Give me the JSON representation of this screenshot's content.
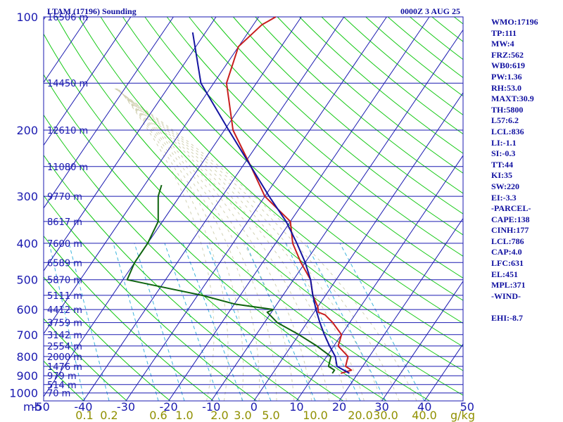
{
  "chart_data": {
    "type": "line",
    "subtype": "skew-T log-P sounding",
    "title": "LTAM (17196) Sounding",
    "datetime": "0000Z  3 AUG 25",
    "pressure_ticks": [
      100,
      200,
      300,
      400,
      500,
      600,
      700,
      800,
      900,
      1000
    ],
    "pressure_unit": "mb",
    "temperature_ticks": [
      -50,
      -40,
      -30,
      -20,
      -10,
      0,
      10,
      20,
      30,
      40,
      50
    ],
    "mixing_ratio_ticks": [
      "0.1",
      "0.2",
      "0.6",
      "1.0",
      "2.0",
      "3.0",
      "5.0",
      "10.0",
      "20.0",
      "30.0",
      "40.0"
    ],
    "mixing_ratio_unit": "g/kg",
    "height_labels": [
      {
        "p": 100,
        "text": "16506 m"
      },
      {
        "p": 150,
        "text": "14450 m"
      },
      {
        "p": 200,
        "text": "12610 m"
      },
      {
        "p": 250,
        "text": "11080 m"
      },
      {
        "p": 300,
        "text": "9770 m"
      },
      {
        "p": 350,
        "text": "8617 m"
      },
      {
        "p": 400,
        "text": "7600 m"
      },
      {
        "p": 450,
        "text": "6589 m"
      },
      {
        "p": 500,
        "text": "5870 m"
      },
      {
        "p": 550,
        "text": "5111 m"
      },
      {
        "p": 600,
        "text": "4412 m"
      },
      {
        "p": 650,
        "text": "3759 m"
      },
      {
        "p": 700,
        "text": "3142 m"
      },
      {
        "p": 750,
        "text": "2554 m"
      },
      {
        "p": 800,
        "text": "2000 m"
      },
      {
        "p": 850,
        "text": "1476 m"
      },
      {
        "p": 900,
        "text": "979 m"
      },
      {
        "p": 950,
        "text": "514 m"
      },
      {
        "p": 1000,
        "text": "70 m"
      }
    ],
    "series": [
      {
        "name": "Temperature",
        "color": "#c81e1e",
        "points": [
          [
            887,
            16
          ],
          [
            870,
            18
          ],
          [
            850,
            16
          ],
          [
            800,
            15
          ],
          [
            750,
            11
          ],
          [
            700,
            10
          ],
          [
            650,
            6
          ],
          [
            620,
            3
          ],
          [
            610,
            1
          ],
          [
            590,
            0
          ],
          [
            550,
            -3
          ],
          [
            500,
            -6
          ],
          [
            450,
            -11
          ],
          [
            400,
            -16
          ],
          [
            350,
            -20
          ],
          [
            300,
            -30
          ],
          [
            250,
            -38
          ],
          [
            200,
            -48
          ],
          [
            150,
            -57
          ],
          [
            120,
            -60
          ],
          [
            105,
            -58
          ],
          [
            100,
            -56
          ]
        ]
      },
      {
        "name": "Dewpoint",
        "color": "#0f640f",
        "points": [
          [
            887,
            14
          ],
          [
            870,
            14
          ],
          [
            850,
            12
          ],
          [
            800,
            11
          ],
          [
            750,
            6
          ],
          [
            700,
            0
          ],
          [
            650,
            -7
          ],
          [
            610,
            -11
          ],
          [
            600,
            -10
          ],
          [
            580,
            -20
          ],
          [
            550,
            -29
          ],
          [
            500,
            -49
          ],
          [
            450,
            -50
          ],
          [
            400,
            -50
          ],
          [
            350,
            -51
          ],
          [
            300,
            -55
          ],
          [
            280,
            -56
          ]
        ]
      },
      {
        "name": "Parcel",
        "color": "#1414a0",
        "points": [
          [
            887,
            18
          ],
          [
            850,
            14
          ],
          [
            800,
            12
          ],
          [
            750,
            9
          ],
          [
            700,
            6
          ],
          [
            650,
            3
          ],
          [
            600,
            0
          ],
          [
            550,
            -3
          ],
          [
            500,
            -6
          ],
          [
            450,
            -10
          ],
          [
            400,
            -15
          ],
          [
            350,
            -21
          ],
          [
            300,
            -29
          ],
          [
            250,
            -38
          ],
          [
            200,
            -49
          ],
          [
            150,
            -63
          ],
          [
            110,
            -73
          ]
        ]
      }
    ],
    "indices": [
      "WMO:17196",
      "TP:111",
      "MW:4",
      "FRZ:562",
      "WB0:619",
      "PW:1.36",
      "RH:53.0",
      "MAXT:30.9",
      "TH:5800",
      "L57:6.2",
      "LCL:836",
      "LI:-1.1",
      "SI:-0.3",
      "TT:44",
      "KI:35",
      "SW:220",
      "EI:-3.3",
      "-PARCEL-",
      "CAPE:138",
      "CINH:177",
      "LCL:786",
      "CAP:4.0",
      "LFC:631",
      "EL:451",
      "MPL:371",
      "-WIND-",
      "",
      "EHI:-8.7"
    ],
    "colors": {
      "isobar": "#1a1ab0",
      "isotherm": "#1a1ab0",
      "dry_adiabat": "#13c813",
      "moist_adiabat": "#d2d2b4",
      "mixing_ratio": "#3cb4dc",
      "label_blue": "#1a1ab0",
      "label_olive": "#909000"
    }
  }
}
